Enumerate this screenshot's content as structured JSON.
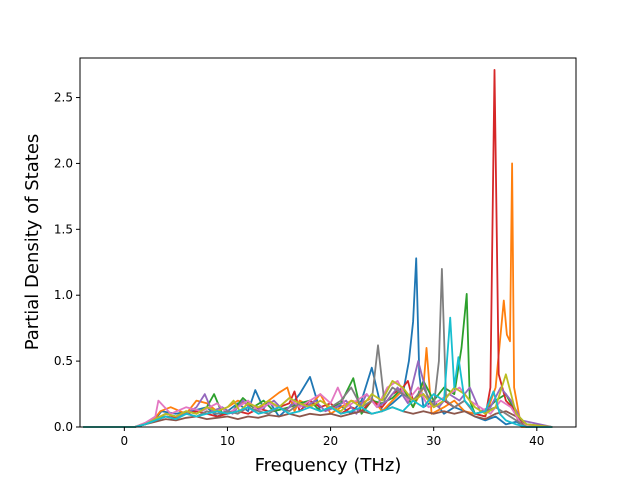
{
  "chart_data": {
    "type": "line",
    "title": "",
    "xlabel": "Frequency (THz)",
    "ylabel": "Partial Density of States",
    "xlim": [
      -4.3,
      43.8
    ],
    "ylim": [
      0,
      2.8
    ],
    "xticks": [
      0,
      10,
      20,
      30,
      40
    ],
    "yticks": [
      0.0,
      0.5,
      1.0,
      1.5,
      2.0,
      2.5
    ],
    "grid": false,
    "legend": "none",
    "series": [
      {
        "color": "#1f77b4",
        "x": [
          -4,
          1,
          2,
          3,
          3.6,
          5,
          7,
          8,
          9,
          10,
          11,
          12,
          12.7,
          13.5,
          14,
          15,
          16,
          17,
          18,
          19,
          20,
          21,
          22,
          23,
          24,
          25,
          26,
          27,
          27.6,
          28,
          28.3,
          28.6,
          29,
          30,
          31,
          32,
          33,
          34,
          35,
          36,
          37,
          38,
          39,
          41.5
        ],
        "y": [
          0,
          0,
          0.02,
          0.06,
          0.12,
          0.1,
          0.13,
          0.15,
          0.08,
          0.12,
          0.18,
          0.12,
          0.28,
          0.14,
          0.2,
          0.08,
          0.15,
          0.25,
          0.38,
          0.12,
          0.14,
          0.16,
          0.1,
          0.2,
          0.45,
          0.12,
          0.18,
          0.25,
          0.5,
          0.8,
          1.28,
          0.4,
          0.15,
          0.2,
          0.1,
          0.15,
          0.12,
          0.08,
          0.05,
          0.08,
          0.02,
          0.04,
          0,
          0
        ]
      },
      {
        "color": "#ff7f0e",
        "x": [
          -4,
          1,
          2,
          3,
          3.5,
          4.5,
          6,
          7,
          8,
          9,
          10,
          11,
          12,
          13,
          14,
          15,
          15.8,
          16.5,
          17,
          18,
          19,
          20,
          21,
          22,
          23,
          24,
          25,
          26,
          27,
          28,
          29,
          29.3,
          29.8,
          31,
          32,
          33,
          34,
          35,
          36,
          36.8,
          37.1,
          37.4,
          37.6,
          37.8,
          38.5,
          41.5
        ],
        "y": [
          0,
          0,
          0.03,
          0.07,
          0.12,
          0.15,
          0.1,
          0.2,
          0.18,
          0.12,
          0.15,
          0.2,
          0.17,
          0.14,
          0.2,
          0.26,
          0.3,
          0.12,
          0.2,
          0.16,
          0.25,
          0.1,
          0.15,
          0.2,
          0.18,
          0.22,
          0.12,
          0.2,
          0.28,
          0.15,
          0.3,
          0.6,
          0.1,
          0.15,
          0.2,
          0.12,
          0.1,
          0.08,
          0.3,
          0.96,
          0.7,
          0.65,
          2.0,
          0.3,
          0,
          0
        ]
      },
      {
        "color": "#2ca02c",
        "x": [
          -4,
          1,
          2,
          3,
          4,
          5,
          6,
          7,
          8,
          8.7,
          9.5,
          10.5,
          11.5,
          12.5,
          13.5,
          14.5,
          16,
          17,
          18,
          19,
          20,
          21,
          22.2,
          23,
          24,
          25,
          26,
          27,
          28,
          29,
          30,
          31,
          32,
          32.7,
          33.2,
          33.5,
          34,
          35,
          36,
          37,
          38,
          39,
          41.5
        ],
        "y": [
          0,
          0,
          0.02,
          0.05,
          0.1,
          0.08,
          0.12,
          0.1,
          0.15,
          0.25,
          0.1,
          0.12,
          0.22,
          0.15,
          0.2,
          0.12,
          0.15,
          0.18,
          0.2,
          0.12,
          0.15,
          0.18,
          0.37,
          0.1,
          0.2,
          0.18,
          0.22,
          0.3,
          0.15,
          0.35,
          0.2,
          0.3,
          0.25,
          0.6,
          1.01,
          0.2,
          0.1,
          0.12,
          0.2,
          0.25,
          0.1,
          0.02,
          0
        ]
      },
      {
        "color": "#d62728",
        "x": [
          -4,
          1,
          2,
          3,
          4,
          5,
          6,
          7,
          8,
          9,
          10,
          11,
          12,
          13,
          14,
          15,
          16,
          16.5,
          17,
          18,
          19,
          20,
          21,
          22,
          23,
          24,
          25,
          26,
          27,
          27.5,
          28,
          29,
          30,
          31,
          32,
          33,
          34,
          35,
          35.5,
          35.9,
          36.3,
          37,
          37.6,
          38.2,
          39,
          41.5
        ],
        "y": [
          0,
          0,
          0.02,
          0.05,
          0.08,
          0.07,
          0.1,
          0.12,
          0.1,
          0.08,
          0.1,
          0.12,
          0.1,
          0.14,
          0.12,
          0.15,
          0.18,
          0.27,
          0.12,
          0.2,
          0.15,
          0.18,
          0.1,
          0.15,
          0.12,
          0.2,
          0.15,
          0.25,
          0.3,
          0.35,
          0.2,
          0.25,
          0.15,
          0.2,
          0.15,
          0.2,
          0.1,
          0.08,
          0.3,
          2.71,
          0.4,
          0.2,
          0.15,
          0.05,
          0,
          0
        ]
      },
      {
        "color": "#9467bd",
        "x": [
          -4,
          1,
          2,
          3,
          4,
          5,
          6,
          7,
          7.8,
          8.5,
          9.5,
          10.5,
          11.5,
          12.5,
          13.5,
          14.5,
          15.5,
          16.5,
          17.5,
          18.5,
          19.5,
          20.5,
          21.5,
          22.5,
          23.5,
          24.5,
          25.5,
          26.5,
          27.5,
          28.5,
          29.5,
          30.5,
          31.5,
          32.5,
          33.5,
          34.5,
          35.5,
          36.5,
          37.5,
          38.5,
          41.5
        ],
        "y": [
          0,
          0,
          0.02,
          0.06,
          0.1,
          0.08,
          0.1,
          0.15,
          0.25,
          0.12,
          0.15,
          0.1,
          0.2,
          0.12,
          0.15,
          0.2,
          0.12,
          0.18,
          0.15,
          0.2,
          0.12,
          0.15,
          0.2,
          0.1,
          0.25,
          0.15,
          0.2,
          0.3,
          0.18,
          0.5,
          0.2,
          0.15,
          0.25,
          0.2,
          0.3,
          0.12,
          0.15,
          0.3,
          0.2,
          0.05,
          0
        ]
      },
      {
        "color": "#8c564b",
        "x": [
          -4,
          1,
          2,
          3,
          4,
          5,
          6,
          7,
          8,
          9,
          10,
          11,
          12,
          13,
          14,
          15,
          16,
          17,
          18,
          19,
          20,
          21,
          22,
          23,
          24,
          25,
          26,
          27,
          28,
          29,
          30,
          31,
          32,
          33,
          34,
          35,
          36,
          37,
          38,
          39,
          41.5
        ],
        "y": [
          0,
          0,
          0.02,
          0.04,
          0.06,
          0.05,
          0.07,
          0.08,
          0.06,
          0.07,
          0.08,
          0.06,
          0.08,
          0.07,
          0.09,
          0.08,
          0.1,
          0.08,
          0.1,
          0.09,
          0.1,
          0.08,
          0.1,
          0.12,
          0.1,
          0.12,
          0.15,
          0.12,
          0.1,
          0.12,
          0.1,
          0.12,
          0.1,
          0.12,
          0.08,
          0.06,
          0.1,
          0.12,
          0.08,
          0.02,
          0
        ]
      },
      {
        "color": "#e377c2",
        "x": [
          -4,
          1,
          2,
          3,
          3.3,
          4.5,
          6,
          7.5,
          9,
          10,
          11,
          12,
          13,
          14,
          15,
          16,
          17,
          18,
          19,
          20,
          20.7,
          21.5,
          22.5,
          23.5,
          24.5,
          25.5,
          26.5,
          27.5,
          28.5,
          29.5,
          30.5,
          31.5,
          32.5,
          33.5,
          34.5,
          35.5,
          36.5,
          37.5,
          38.5,
          41.5
        ],
        "y": [
          0,
          0,
          0.03,
          0.08,
          0.2,
          0.1,
          0.15,
          0.12,
          0.18,
          0.1,
          0.15,
          0.2,
          0.12,
          0.18,
          0.15,
          0.22,
          0.15,
          0.2,
          0.25,
          0.18,
          0.3,
          0.15,
          0.2,
          0.25,
          0.15,
          0.3,
          0.35,
          0.2,
          0.3,
          0.15,
          0.2,
          0.25,
          0.3,
          0.2,
          0.15,
          0.1,
          0.2,
          0.15,
          0.02,
          0
        ]
      },
      {
        "color": "#7f7f7f",
        "x": [
          -4,
          1,
          2,
          3,
          4,
          5,
          6,
          7,
          8,
          9,
          10,
          11,
          12,
          13,
          14,
          15,
          16,
          17,
          18,
          19,
          20,
          21,
          22,
          23,
          24,
          24.6,
          25.2,
          26,
          27,
          28,
          29,
          30,
          30.5,
          30.8,
          31.2,
          32,
          33,
          34,
          35,
          36,
          37,
          38,
          39,
          41.5
        ],
        "y": [
          0,
          0,
          0.02,
          0.05,
          0.08,
          0.06,
          0.1,
          0.08,
          0.12,
          0.1,
          0.12,
          0.1,
          0.15,
          0.12,
          0.1,
          0.15,
          0.12,
          0.18,
          0.15,
          0.12,
          0.15,
          0.2,
          0.3,
          0.15,
          0.2,
          0.62,
          0.2,
          0.3,
          0.25,
          0.2,
          0.3,
          0.15,
          0.5,
          1.2,
          0.2,
          0.15,
          0.2,
          0.1,
          0.12,
          0.15,
          0.1,
          0.05,
          0,
          0
        ]
      },
      {
        "color": "#bcbd22",
        "x": [
          -4,
          1,
          2,
          3,
          4,
          5,
          6,
          7,
          8,
          9,
          10,
          10.6,
          11.2,
          12,
          13,
          14,
          15,
          16,
          17,
          18,
          19,
          20,
          21,
          22,
          23,
          24,
          25,
          26,
          27,
          28,
          29,
          30,
          31,
          32,
          33,
          34,
          35,
          36,
          37,
          38,
          39,
          41.5
        ],
        "y": [
          0,
          0,
          0.02,
          0.06,
          0.1,
          0.08,
          0.12,
          0.1,
          0.15,
          0.12,
          0.15,
          0.2,
          0.12,
          0.18,
          0.15,
          0.2,
          0.15,
          0.22,
          0.18,
          0.15,
          0.2,
          0.15,
          0.12,
          0.2,
          0.15,
          0.25,
          0.2,
          0.35,
          0.3,
          0.2,
          0.25,
          0.15,
          0.2,
          0.3,
          0.25,
          0.15,
          0.1,
          0.15,
          0.4,
          0.1,
          0.02,
          0
        ]
      },
      {
        "color": "#17becf",
        "x": [
          -4,
          1,
          2,
          3,
          4,
          5,
          6,
          7,
          8,
          9,
          10,
          11,
          12,
          13,
          14,
          15,
          16,
          17,
          18,
          19,
          20,
          21,
          22,
          23,
          24,
          25,
          26,
          27,
          28,
          29,
          30,
          31,
          31.6,
          32,
          32.4,
          33,
          33.6,
          34,
          35,
          35.8,
          36.4,
          37,
          38,
          39,
          41.5
        ],
        "y": [
          0,
          0,
          0.02,
          0.05,
          0.08,
          0.06,
          0.1,
          0.08,
          0.1,
          0.12,
          0.1,
          0.12,
          0.15,
          0.1,
          0.12,
          0.15,
          0.1,
          0.12,
          0.15,
          0.12,
          0.15,
          0.1,
          0.12,
          0.15,
          0.1,
          0.12,
          0.15,
          0.12,
          0.2,
          0.15,
          0.25,
          0.2,
          0.83,
          0.3,
          0.53,
          0.2,
          0.15,
          0.1,
          0.12,
          0.27,
          0.1,
          0.05,
          0.02,
          0,
          0
        ]
      }
    ]
  }
}
